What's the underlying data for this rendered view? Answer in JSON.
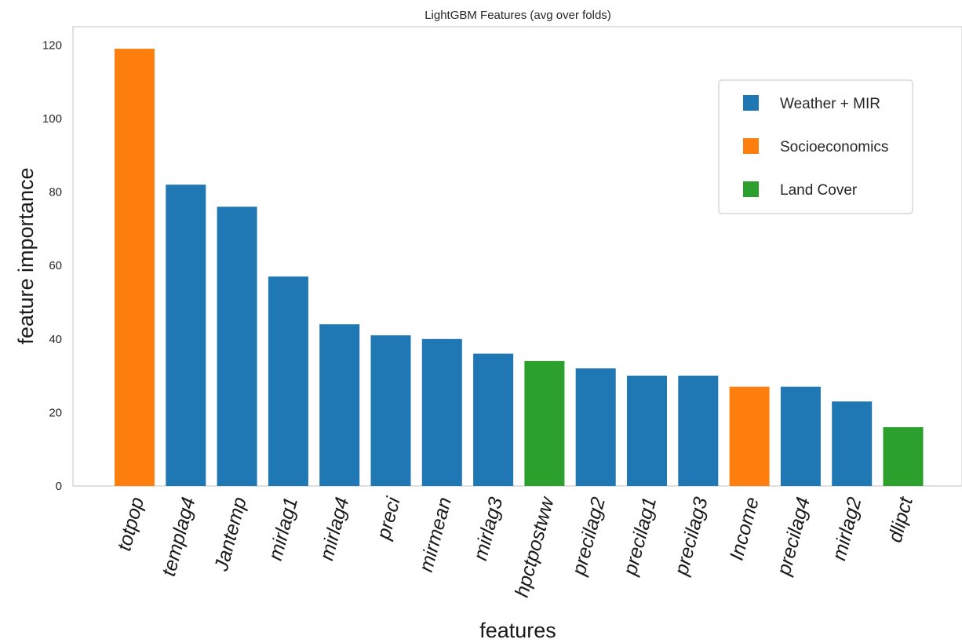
{
  "chart_data": {
    "type": "bar",
    "title": "LightGBM Features (avg over folds)",
    "xlabel": "features",
    "ylabel": "feature importance",
    "ylim": [
      0,
      125
    ],
    "yticks": [
      0,
      20,
      40,
      60,
      80,
      100,
      120
    ],
    "grid": false,
    "legend_position": "top-right",
    "categories": [
      "totpop",
      "templag4",
      "Jantemp",
      "mirlag1",
      "mirlag4",
      "preci",
      "mirmean",
      "mirlag3",
      "hpctpostww",
      "precilag2",
      "precilag1",
      "precilag3",
      "Income",
      "precilag4",
      "mirlag2",
      "dlipct"
    ],
    "values": [
      119,
      82,
      76,
      57,
      44,
      41,
      40,
      36,
      34,
      32,
      30,
      30,
      27,
      27,
      23,
      16
    ],
    "groups": [
      "Socioeconomics",
      "Weather + MIR",
      "Weather + MIR",
      "Weather + MIR",
      "Weather + MIR",
      "Weather + MIR",
      "Weather + MIR",
      "Weather + MIR",
      "Land Cover",
      "Weather + MIR",
      "Weather + MIR",
      "Weather + MIR",
      "Socioeconomics",
      "Weather + MIR",
      "Weather + MIR",
      "Land Cover"
    ],
    "legend": [
      {
        "name": "Weather + MIR",
        "color": "#1f77b4"
      },
      {
        "name": "Socioeconomics",
        "color": "#ff7f0e"
      },
      {
        "name": "Land Cover",
        "color": "#2ca02c"
      }
    ]
  }
}
